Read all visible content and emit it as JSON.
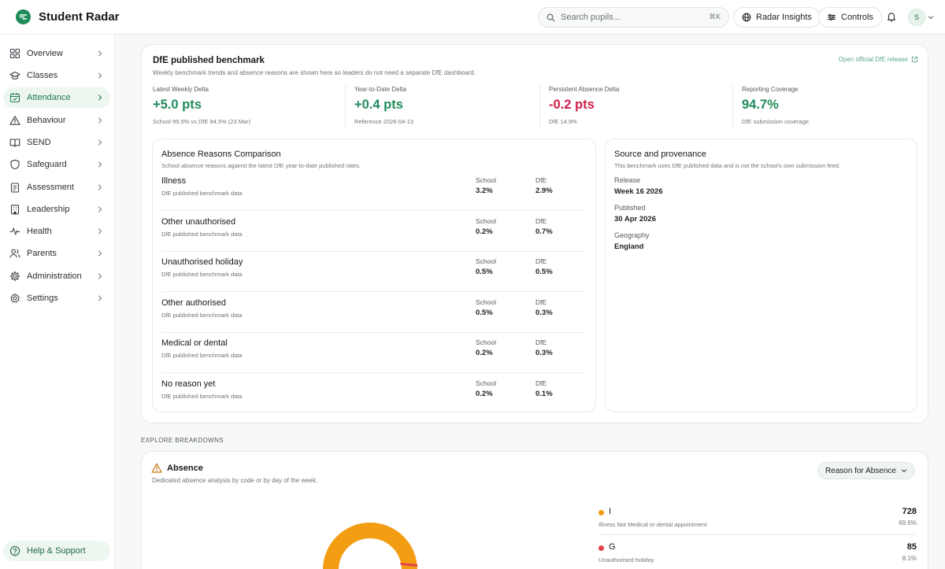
{
  "app": {
    "name": "Student Radar",
    "accent": "#1f8a5a"
  },
  "search": {
    "placeholder": "Search pupils...",
    "shortcut": "⌘K"
  },
  "topbar": {
    "insights_label": "Radar Insights",
    "controls_label": "Controls",
    "avatar_initial": "S"
  },
  "sidebar": {
    "items": [
      {
        "label": "Overview",
        "icon": "grid-icon"
      },
      {
        "label": "Classes",
        "icon": "graduation-cap-icon"
      },
      {
        "label": "Attendance",
        "icon": "calendar-check-icon",
        "active": true
      },
      {
        "label": "Behaviour",
        "icon": "warning-triangle-icon"
      },
      {
        "label": "SEND",
        "icon": "open-book-icon"
      },
      {
        "label": "Safeguard",
        "icon": "shield-icon"
      },
      {
        "label": "Assessment",
        "icon": "clipboard-icon"
      },
      {
        "label": "Leadership",
        "icon": "building-icon"
      },
      {
        "label": "Health",
        "icon": "pulse-icon"
      },
      {
        "label": "Parents",
        "icon": "users-icon"
      },
      {
        "label": "Administration",
        "icon": "gear-icon"
      },
      {
        "label": "Settings",
        "icon": "settings-icon"
      }
    ],
    "help_label": "Help & Support"
  },
  "benchmark": {
    "title": "DfE published benchmark",
    "subtitle": "Weekly benchmark trends and absence reasons are shown here so leaders do not need a separate DfE dashboard.",
    "link_label": "Open official DfE release",
    "kpis": [
      {
        "label": "Latest Weekly Delta",
        "value": "+5.0 pts",
        "note": "School 99.5% vs DfE 94.5% (23 Mar)",
        "tone": "green"
      },
      {
        "label": "Year-to-Date Delta",
        "value": "+0.4 pts",
        "note": "Reference 2026-04-13",
        "tone": "green"
      },
      {
        "label": "Persistent Absence Delta",
        "value": "-0.2 pts",
        "note": "DfE 14.9%",
        "tone": "red"
      },
      {
        "label": "Reporting Coverage",
        "value": "94.7%",
        "note": "DfE submission coverage",
        "tone": "green"
      }
    ]
  },
  "reasons": {
    "title": "Absence Reasons Comparison",
    "subtitle": "School absence reasons against the latest DfE year-to-date published rates.",
    "school_header": "School",
    "dfe_header": "DfE",
    "rows": [
      {
        "name": "Illness",
        "source": "DfE published benchmark data",
        "school": "3.2%",
        "dfe": "2.9%"
      },
      {
        "name": "Other unauthorised",
        "source": "DfE published benchmark data",
        "school": "0.2%",
        "dfe": "0.7%"
      },
      {
        "name": "Unauthorised holiday",
        "source": "DfE published benchmark data",
        "school": "0.5%",
        "dfe": "0.5%"
      },
      {
        "name": "Other authorised",
        "source": "DfE published benchmark data",
        "school": "0.5%",
        "dfe": "0.3%"
      },
      {
        "name": "Medical or dental",
        "source": "DfE published benchmark data",
        "school": "0.2%",
        "dfe": "0.3%"
      },
      {
        "name": "No reason yet",
        "source": "DfE published benchmark data",
        "school": "0.2%",
        "dfe": "0.1%"
      }
    ]
  },
  "provenance": {
    "title": "Source and provenance",
    "subtitle": "This benchmark uses DfE published data and is not the school's own submission feed.",
    "release_label": "Release",
    "release_value": "Week 16 2026",
    "published_label": "Published",
    "published_value": "30 Apr 2026",
    "geography_label": "Geography",
    "geography_value": "England"
  },
  "explore": {
    "heading": "EXPLORE BREAKDOWNS",
    "absence_title": "Absence",
    "absence_subtitle": "Dedicated absence analysis by code or by day of the week.",
    "select_value": "Reason for Absence",
    "legend": [
      {
        "code": "I",
        "description": "Illness Not Medical or dental appointment",
        "count": "728",
        "pct": "69.6%",
        "color": "#f29d12"
      },
      {
        "code": "G",
        "description": "Unauthorised holiday",
        "count": "85",
        "pct": "8.1%",
        "color": "#e0424b"
      }
    ]
  }
}
